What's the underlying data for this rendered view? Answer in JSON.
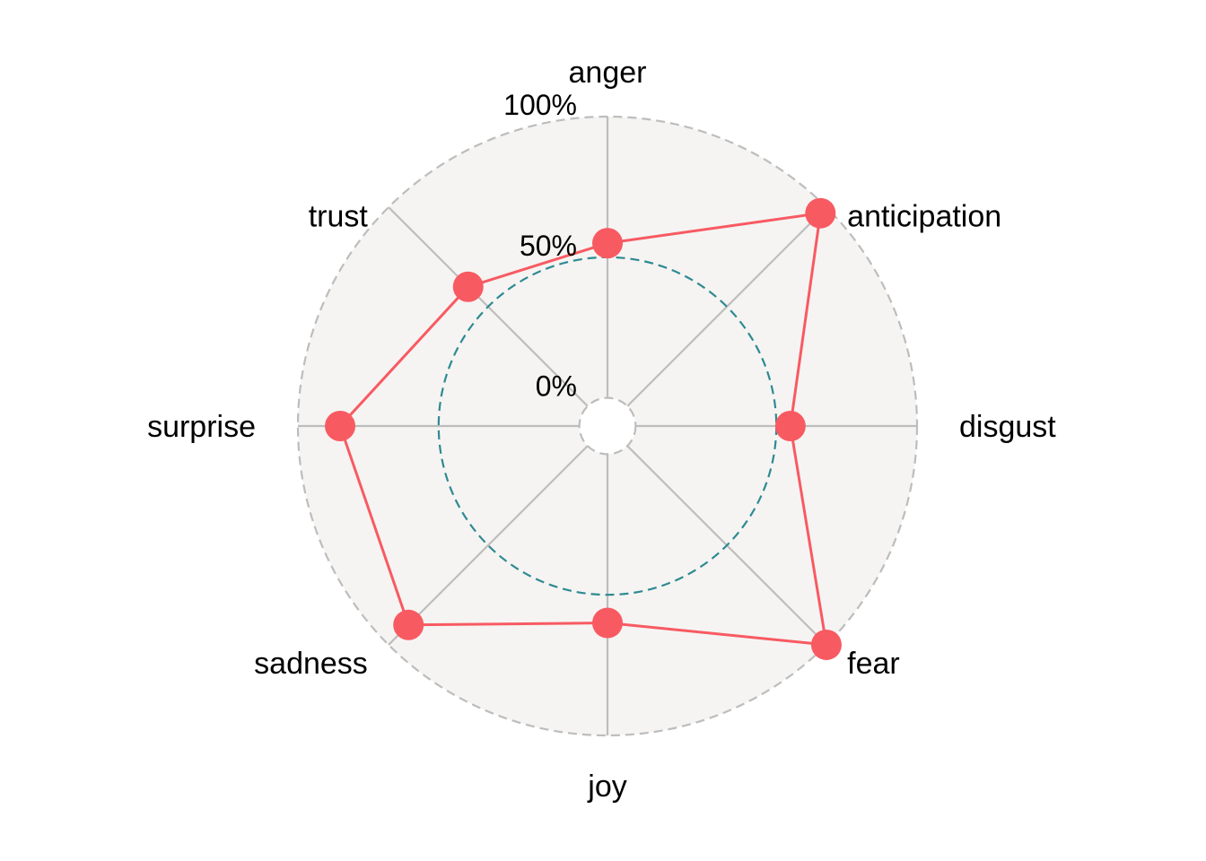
{
  "chart_data": {
    "type": "radar",
    "categories": [
      "anger",
      "anticipation",
      "disgust",
      "fear",
      "joy",
      "sadness",
      "surprise",
      "trust"
    ],
    "series": [
      {
        "values": [
          55,
          97,
          55,
          100,
          60,
          90,
          85,
          60
        ]
      }
    ],
    "radial_ticks": [
      "0%",
      "50%",
      "100%"
    ],
    "rlim": [
      -10,
      100
    ],
    "reference_level": 50,
    "grid": true,
    "colors": {
      "series": "#F85A62",
      "reference": "#2E8A92",
      "panel": "#F5F4F2",
      "grid": "#BDBDBD"
    }
  }
}
